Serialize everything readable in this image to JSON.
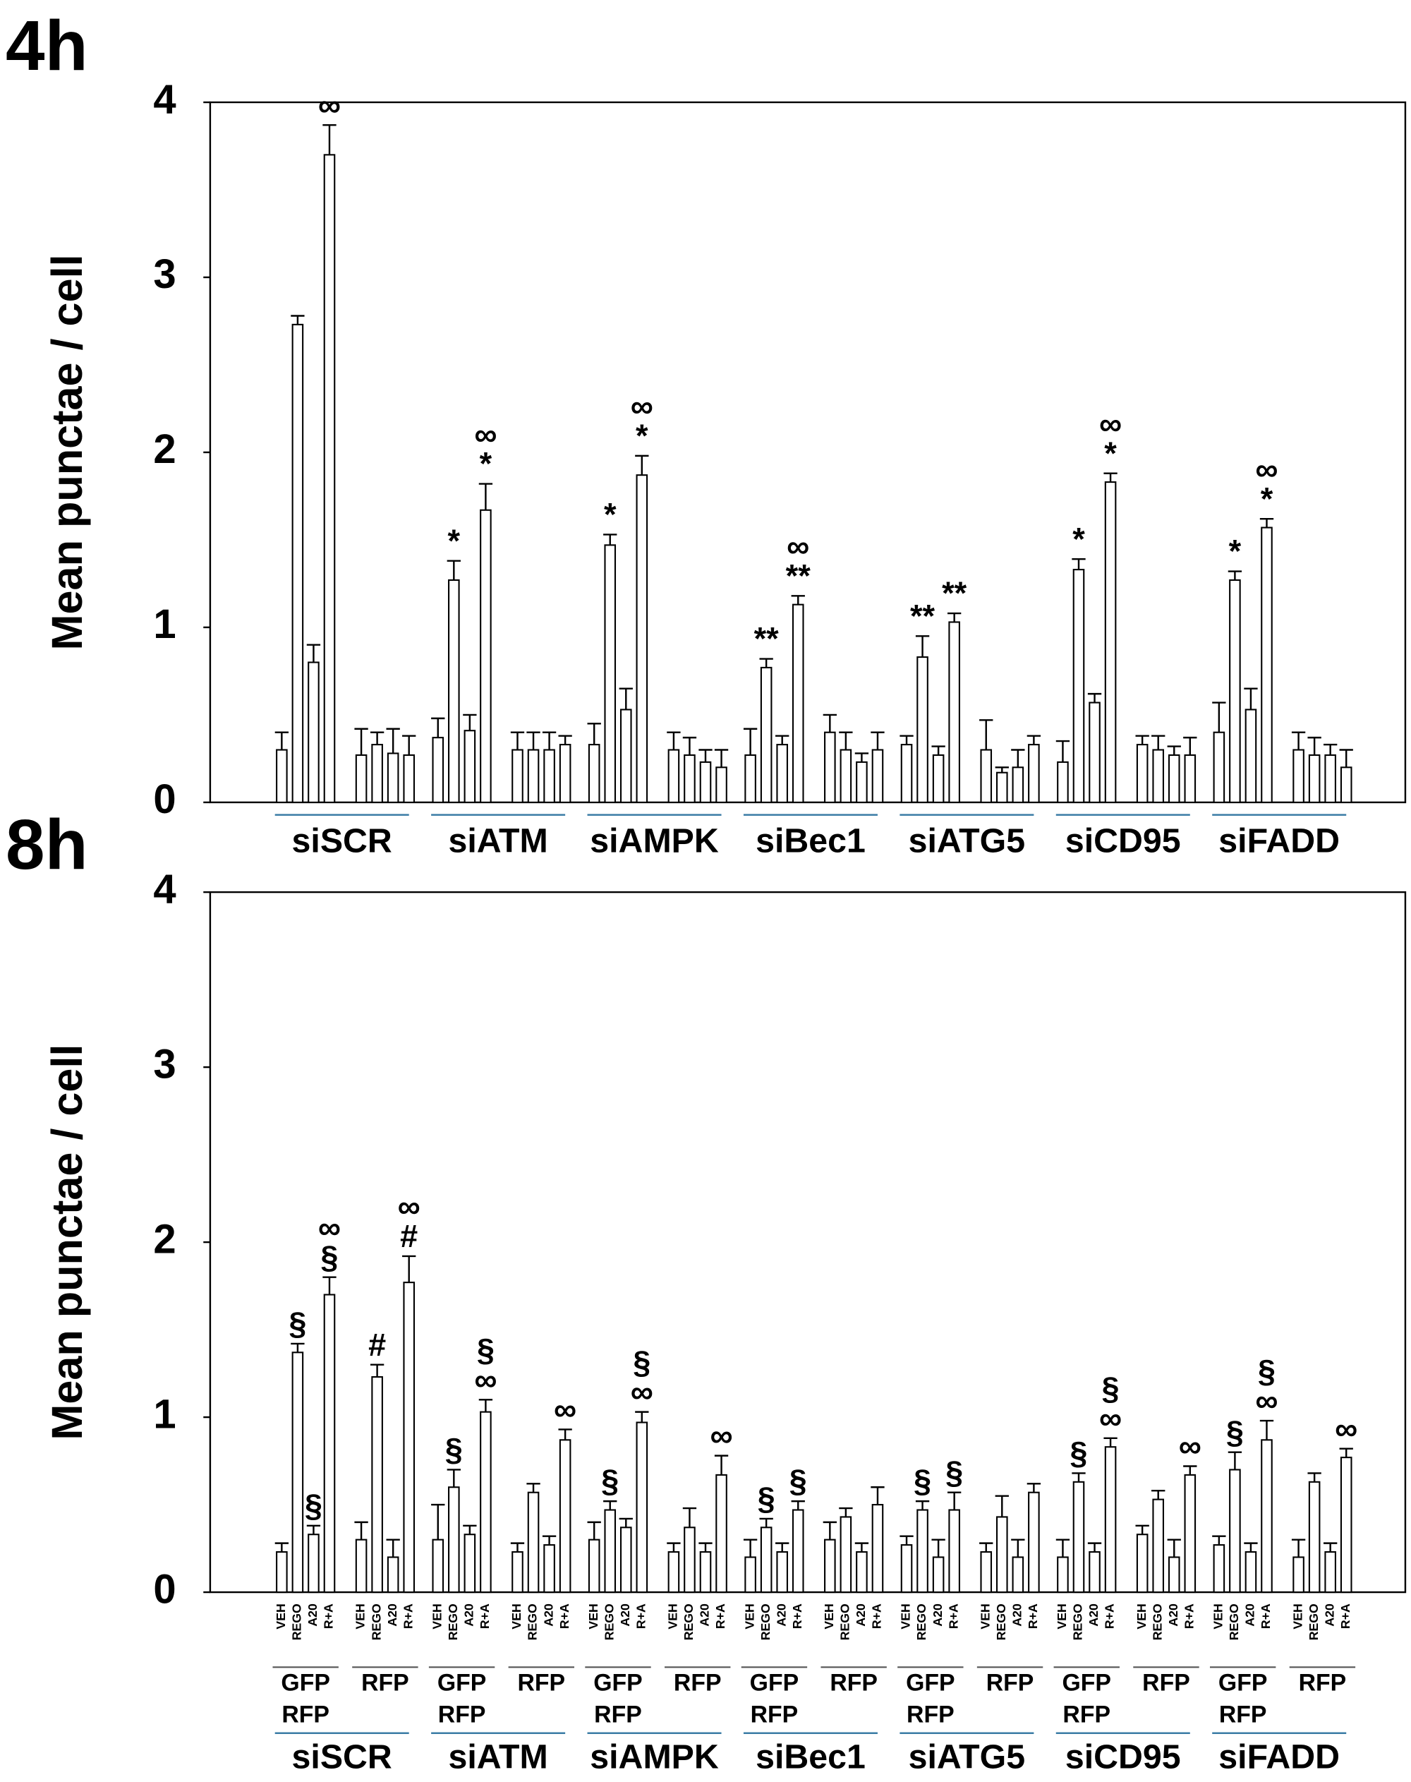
{
  "chart_data": [
    {
      "type": "bar",
      "panel_label": "4h",
      "y_label": "Mean punctae / cell",
      "ylim": [
        0,
        4
      ],
      "yticks": [
        0,
        1,
        2,
        3,
        4
      ],
      "groups": [
        {
          "name": "siSCR",
          "values": [
            0.3,
            2.73,
            0.8,
            3.7,
            0.27,
            0.33,
            0.28,
            0.27
          ],
          "errors": [
            0.1,
            0.05,
            0.1,
            0.17,
            0.15,
            0.07,
            0.14,
            0.11
          ],
          "annotations": [
            null,
            null,
            null,
            [
              "∞"
            ],
            null,
            null,
            null,
            null
          ]
        },
        {
          "name": "siATM",
          "values": [
            0.37,
            1.27,
            0.41,
            1.67,
            0.3,
            0.3,
            0.3,
            0.33
          ],
          "errors": [
            0.11,
            0.11,
            0.09,
            0.15,
            0.1,
            0.1,
            0.1,
            0.05
          ],
          "annotations": [
            null,
            [
              "*"
            ],
            null,
            [
              "∞",
              "*"
            ],
            null,
            null,
            null,
            null
          ]
        },
        {
          "name": "siAMPK",
          "values": [
            0.33,
            1.47,
            0.53,
            1.87,
            0.3,
            0.27,
            0.23,
            0.2
          ],
          "errors": [
            0.12,
            0.06,
            0.12,
            0.11,
            0.1,
            0.1,
            0.07,
            0.1
          ],
          "annotations": [
            null,
            [
              "*"
            ],
            null,
            [
              "∞",
              "*"
            ],
            null,
            null,
            null,
            null
          ]
        },
        {
          "name": "siBec1",
          "values": [
            0.27,
            0.77,
            0.33,
            1.13,
            0.4,
            0.3,
            0.23,
            0.3
          ],
          "errors": [
            0.15,
            0.05,
            0.05,
            0.05,
            0.1,
            0.1,
            0.05,
            0.1
          ],
          "annotations": [
            null,
            [
              "**"
            ],
            null,
            [
              "∞",
              "**"
            ],
            null,
            null,
            null,
            null
          ]
        },
        {
          "name": "siATG5",
          "values": [
            0.33,
            0.83,
            0.27,
            1.03,
            0.3,
            0.17,
            0.2,
            0.33
          ],
          "errors": [
            0.05,
            0.12,
            0.05,
            0.05,
            0.17,
            0.03,
            0.1,
            0.05
          ],
          "annotations": [
            null,
            [
              "**"
            ],
            null,
            [
              "**"
            ],
            null,
            null,
            null,
            null
          ]
        },
        {
          "name": "siCD95",
          "values": [
            0.23,
            1.33,
            0.57,
            1.83,
            0.33,
            0.3,
            0.27,
            0.27
          ],
          "errors": [
            0.12,
            0.06,
            0.05,
            0.05,
            0.05,
            0.08,
            0.05,
            0.1
          ],
          "annotations": [
            null,
            [
              "*"
            ],
            null,
            [
              "∞",
              "*"
            ],
            null,
            null,
            null,
            null
          ]
        },
        {
          "name": "siFADD",
          "values": [
            0.4,
            1.27,
            0.53,
            1.57,
            0.3,
            0.27,
            0.27,
            0.2
          ],
          "errors": [
            0.17,
            0.05,
            0.12,
            0.05,
            0.1,
            0.1,
            0.06,
            0.1
          ],
          "annotations": [
            null,
            [
              "*"
            ],
            null,
            [
              "∞",
              "*"
            ],
            null,
            null,
            null,
            null
          ]
        }
      ]
    },
    {
      "type": "bar",
      "panel_label": "8h",
      "y_label": "Mean punctae / cell",
      "ylim": [
        0,
        4
      ],
      "yticks": [
        0,
        1,
        2,
        3,
        4
      ],
      "sub_categories": [
        "VEH",
        "REGO",
        "A20",
        "R+A"
      ],
      "channels": [
        "GFP",
        "RFP"
      ],
      "dual_label": "RFP",
      "groups": [
        {
          "name": "siSCR",
          "values": [
            0.23,
            1.37,
            0.33,
            1.7,
            0.3,
            1.23,
            0.2,
            1.77
          ],
          "errors": [
            0.05,
            0.05,
            0.05,
            0.1,
            0.1,
            0.07,
            0.1,
            0.15
          ],
          "annotations": [
            null,
            [
              "§"
            ],
            [
              "§"
            ],
            [
              "∞",
              "§"
            ],
            null,
            [
              "#"
            ],
            null,
            [
              "∞",
              "#"
            ]
          ]
        },
        {
          "name": "siATM",
          "values": [
            0.3,
            0.6,
            0.33,
            1.03,
            0.23,
            0.57,
            0.27,
            0.87
          ],
          "errors": [
            0.2,
            0.1,
            0.05,
            0.07,
            0.05,
            0.05,
            0.05,
            0.06
          ],
          "annotations": [
            null,
            [
              "§"
            ],
            null,
            [
              "§",
              "∞"
            ],
            null,
            null,
            null,
            [
              "∞"
            ]
          ]
        },
        {
          "name": "siAMPK",
          "values": [
            0.3,
            0.47,
            0.37,
            0.97,
            0.23,
            0.37,
            0.23,
            0.67
          ],
          "errors": [
            0.1,
            0.05,
            0.05,
            0.06,
            0.05,
            0.11,
            0.05,
            0.11
          ],
          "annotations": [
            null,
            [
              "§"
            ],
            null,
            [
              "§",
              "∞"
            ],
            null,
            null,
            null,
            [
              "∞"
            ]
          ]
        },
        {
          "name": "siBec1",
          "values": [
            0.2,
            0.37,
            0.23,
            0.47,
            0.3,
            0.43,
            0.23,
            0.5
          ],
          "errors": [
            0.1,
            0.05,
            0.05,
            0.05,
            0.1,
            0.05,
            0.05,
            0.1
          ],
          "annotations": [
            null,
            [
              "§"
            ],
            null,
            [
              "§"
            ],
            null,
            null,
            null,
            null
          ]
        },
        {
          "name": "siATG5",
          "values": [
            0.27,
            0.47,
            0.2,
            0.47,
            0.23,
            0.43,
            0.2,
            0.57
          ],
          "errors": [
            0.05,
            0.05,
            0.1,
            0.1,
            0.05,
            0.12,
            0.1,
            0.05
          ],
          "annotations": [
            null,
            [
              "§"
            ],
            null,
            [
              "§"
            ],
            null,
            null,
            null,
            null
          ]
        },
        {
          "name": "siCD95",
          "values": [
            0.2,
            0.63,
            0.23,
            0.83,
            0.33,
            0.53,
            0.2,
            0.67
          ],
          "errors": [
            0.1,
            0.05,
            0.05,
            0.05,
            0.05,
            0.05,
            0.1,
            0.05
          ],
          "annotations": [
            null,
            [
              "§"
            ],
            null,
            [
              "§",
              "∞"
            ],
            null,
            null,
            null,
            [
              "∞"
            ]
          ]
        },
        {
          "name": "siFADD",
          "values": [
            0.27,
            0.7,
            0.23,
            0.87,
            0.2,
            0.63,
            0.23,
            0.77
          ],
          "errors": [
            0.05,
            0.1,
            0.05,
            0.11,
            0.1,
            0.05,
            0.05,
            0.05
          ],
          "annotations": [
            null,
            [
              "§"
            ],
            null,
            [
              "§",
              "∞"
            ],
            null,
            null,
            null,
            [
              "∞"
            ]
          ]
        }
      ]
    }
  ]
}
